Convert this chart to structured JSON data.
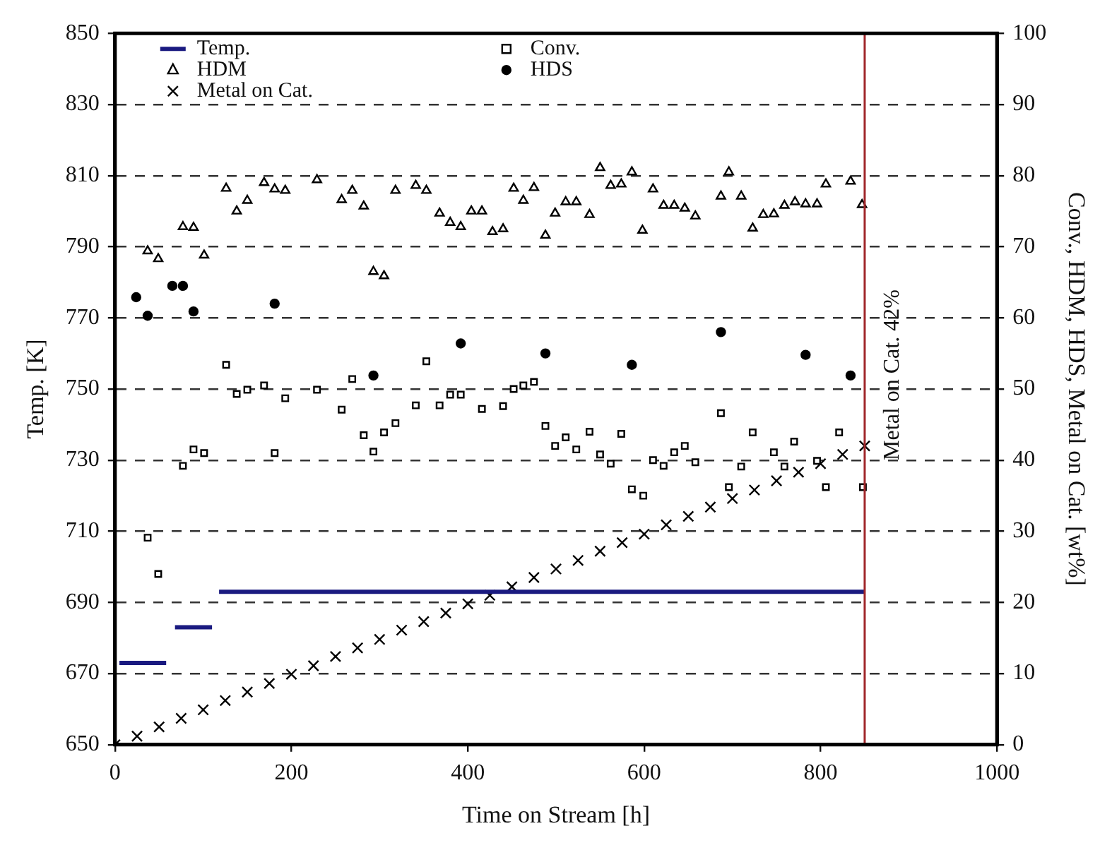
{
  "chart_data": {
    "type": "scatter",
    "xlabel": "Time on Stream [h]",
    "ylabel": "Temp. [K]",
    "y2label": "Conv., HDM, HDS, Metal on Cat. [wt%]",
    "xlim": [
      0,
      1000
    ],
    "xticks": [
      0,
      200,
      400,
      600,
      800,
      1000
    ],
    "ylim": [
      650,
      850
    ],
    "yticks": [
      650,
      670,
      690,
      710,
      730,
      750,
      770,
      790,
      810,
      830,
      850
    ],
    "y2lim": [
      0,
      100
    ],
    "y2ticks": [
      0,
      10,
      20,
      30,
      40,
      50,
      60,
      70,
      80,
      90,
      100
    ],
    "grid": "y",
    "legend": "top left",
    "ref_lines": [
      {
        "axis": "x",
        "value": 850,
        "label": "Metal on Cat. 42%",
        "color": "#a0262a"
      }
    ],
    "series": [
      {
        "name": "Temp.",
        "type": "line",
        "marker": "none",
        "color": "#1a1a80",
        "axis": "y",
        "x": [
          5,
          58,
          63,
          68,
          110,
          114,
          118,
          850
        ],
        "values": [
          673,
          673,
          null,
          683,
          683,
          null,
          693,
          693
        ]
      },
      {
        "name": "Conv.",
        "type": "scatter",
        "marker": "square",
        "color": "#000000",
        "axis": "y2",
        "x": [
          37,
          49,
          77,
          89,
          101,
          126,
          138,
          150,
          169,
          181,
          193,
          229,
          257,
          269,
          282,
          293,
          305,
          318,
          341,
          353,
          368,
          380,
          392,
          416,
          440,
          452,
          463,
          475,
          488,
          499,
          511,
          523,
          538,
          550,
          562,
          574,
          586,
          599,
          610,
          622,
          634,
          646,
          658,
          687,
          696,
          710,
          723,
          747,
          759,
          770,
          796,
          806,
          821,
          848
        ],
        "values": [
          29.1,
          24.0,
          39.2,
          41.5,
          41.0,
          53.4,
          49.3,
          49.9,
          50.5,
          41.0,
          48.7,
          49.9,
          47.1,
          51.4,
          43.5,
          41.2,
          43.9,
          45.2,
          47.7,
          53.9,
          47.7,
          49.2,
          49.2,
          47.2,
          47.6,
          50.0,
          50.5,
          51.0,
          44.8,
          42.0,
          43.2,
          41.5,
          44.0,
          40.8,
          39.5,
          43.7,
          35.9,
          35.0,
          40.0,
          39.2,
          41.1,
          42.0,
          39.7,
          46.6,
          36.2,
          39.1,
          43.9,
          41.1,
          39.1,
          42.6,
          39.9,
          36.2,
          43.9,
          36.2
        ]
      },
      {
        "name": "HDM",
        "type": "scatter",
        "marker": "triangle",
        "color": "#000000",
        "axis": "y2",
        "x": [
          37,
          49,
          77,
          89,
          101,
          126,
          138,
          150,
          169,
          181,
          193,
          229,
          257,
          269,
          282,
          293,
          305,
          318,
          341,
          353,
          368,
          380,
          392,
          404,
          416,
          428,
          440,
          452,
          463,
          475,
          488,
          499,
          511,
          523,
          538,
          550,
          562,
          574,
          586,
          598,
          610,
          622,
          634,
          646,
          658,
          687,
          696,
          710,
          723,
          735,
          747,
          759,
          771,
          783,
          796,
          806,
          834,
          847
        ],
        "values": [
          69.4,
          68.3,
          72.8,
          72.7,
          68.8,
          78.2,
          75.0,
          76.5,
          79.0,
          78.1,
          77.9,
          79.4,
          76.6,
          77.9,
          75.7,
          66.5,
          65.9,
          77.9,
          78.6,
          77.9,
          74.7,
          73.4,
          72.8,
          75.0,
          75.0,
          72.1,
          72.5,
          78.2,
          76.5,
          78.3,
          71.6,
          74.7,
          76.3,
          76.3,
          74.5,
          81.1,
          78.6,
          78.8,
          80.5,
          72.3,
          78.1,
          75.8,
          75.8,
          75.4,
          74.3,
          77.1,
          80.5,
          77.1,
          72.6,
          74.5,
          74.6,
          75.8,
          76.3,
          76.0,
          76.0,
          78.8,
          79.2,
          75.9
        ]
      },
      {
        "name": "HDS",
        "type": "scatter",
        "marker": "circle",
        "color": "#000000",
        "axis": "y2",
        "x": [
          24,
          37,
          65,
          77,
          89,
          181,
          293,
          392,
          488,
          586,
          687,
          783,
          834
        ],
        "values": [
          62.9,
          60.3,
          64.5,
          64.5,
          60.9,
          62.0,
          51.9,
          56.4,
          55.0,
          53.4,
          58.0,
          54.8,
          51.9
        ]
      },
      {
        "name": "Metal on Cat.",
        "type": "scatter",
        "marker": "cross",
        "color": "#000000",
        "axis": "y2",
        "x": [
          0,
          25,
          50,
          75,
          100,
          125,
          150,
          175,
          200,
          225,
          250,
          275,
          300,
          325,
          350,
          375,
          400,
          425,
          450,
          475,
          500,
          525,
          550,
          575,
          600,
          625,
          650,
          675,
          700,
          725,
          750,
          775,
          800,
          825,
          850
        ],
        "values": [
          0,
          1.2,
          2.5,
          3.7,
          4.9,
          6.2,
          7.4,
          8.6,
          9.9,
          11.1,
          12.4,
          13.6,
          14.8,
          16.1,
          17.3,
          18.5,
          19.8,
          21.0,
          22.2,
          23.5,
          24.7,
          25.9,
          27.2,
          28.4,
          29.6,
          30.9,
          32.1,
          33.4,
          34.6,
          35.8,
          37.1,
          38.3,
          39.5,
          40.8,
          42.0
        ]
      }
    ]
  }
}
